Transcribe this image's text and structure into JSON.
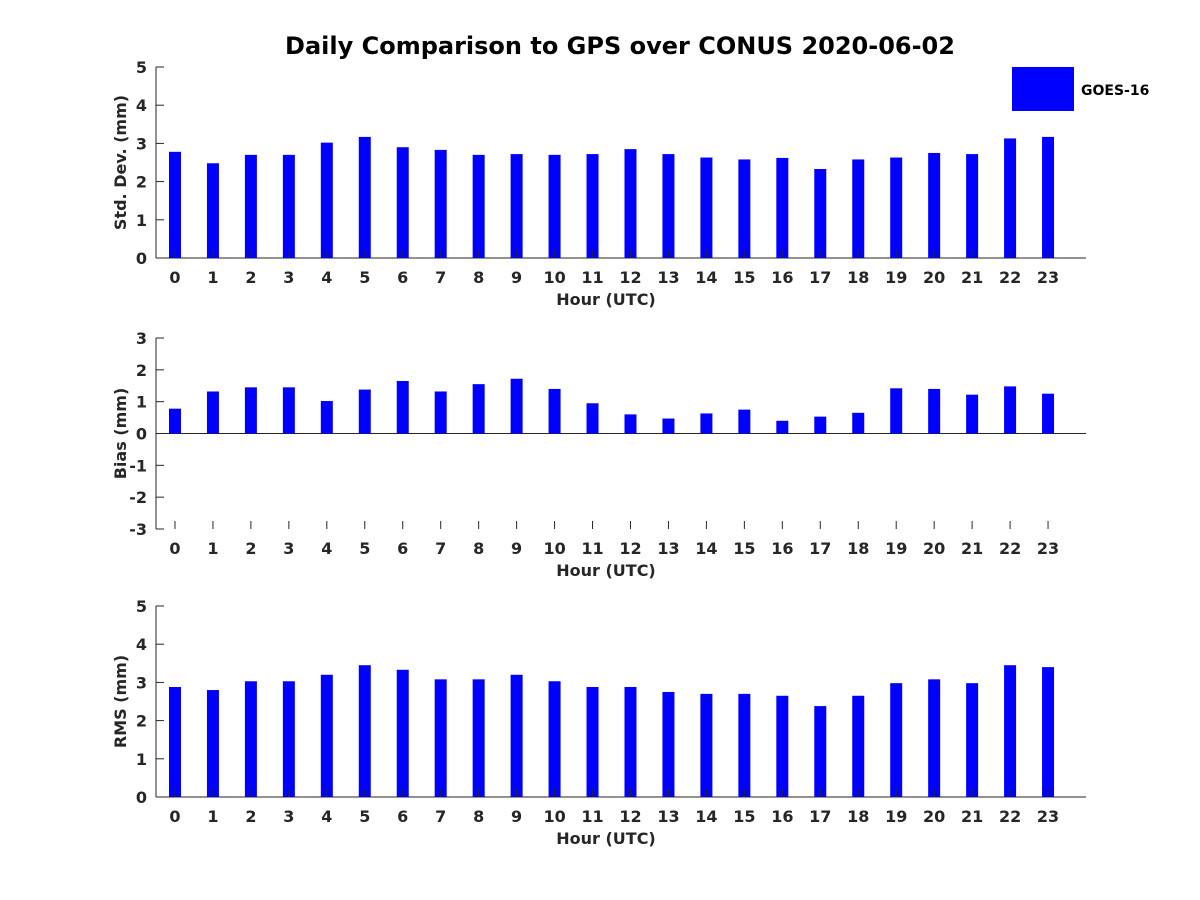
{
  "title": "Daily Comparison to GPS over CONUS 2020-06-02",
  "legend": {
    "label": "GOES-16",
    "color": "#0000ff"
  },
  "colors": {
    "bar": "#0000ff",
    "axis": "#262626"
  },
  "chart_data": [
    {
      "type": "bar",
      "name": "std-dev",
      "categories": [
        "0",
        "1",
        "2",
        "3",
        "4",
        "5",
        "6",
        "7",
        "8",
        "9",
        "10",
        "11",
        "12",
        "13",
        "14",
        "15",
        "16",
        "17",
        "18",
        "19",
        "20",
        "21",
        "22",
        "23"
      ],
      "series": [
        {
          "name": "GOES-16",
          "values": [
            2.78,
            2.48,
            2.7,
            2.7,
            3.02,
            3.17,
            2.9,
            2.83,
            2.7,
            2.72,
            2.7,
            2.72,
            2.85,
            2.72,
            2.63,
            2.58,
            2.62,
            2.33,
            2.58,
            2.63,
            2.75,
            2.72,
            3.13,
            3.17
          ]
        }
      ],
      "title": "",
      "xlabel": "Hour (UTC)",
      "ylabel": "Std. Dev. (mm)",
      "ylim": [
        0,
        5
      ],
      "yticks": [
        "0",
        "1",
        "2",
        "3",
        "4",
        "5"
      ]
    },
    {
      "type": "bar",
      "name": "bias",
      "categories": [
        "0",
        "1",
        "2",
        "3",
        "4",
        "5",
        "6",
        "7",
        "8",
        "9",
        "10",
        "11",
        "12",
        "13",
        "14",
        "15",
        "16",
        "17",
        "18",
        "19",
        "20",
        "21",
        "22",
        "23"
      ],
      "series": [
        {
          "name": "GOES-16",
          "values": [
            0.78,
            1.32,
            1.45,
            1.45,
            1.02,
            1.38,
            1.65,
            1.32,
            1.55,
            1.72,
            1.4,
            0.95,
            0.6,
            0.47,
            0.63,
            0.75,
            0.4,
            0.53,
            0.65,
            1.42,
            1.4,
            1.22,
            1.48,
            1.25
          ]
        }
      ],
      "title": "",
      "xlabel": "Hour (UTC)",
      "ylabel": "Bias (mm)",
      "ylim": [
        -3,
        3
      ],
      "yticks": [
        "-3",
        "-2",
        "-1",
        "0",
        "1",
        "2",
        "3"
      ]
    },
    {
      "type": "bar",
      "name": "rms",
      "categories": [
        "0",
        "1",
        "2",
        "3",
        "4",
        "5",
        "6",
        "7",
        "8",
        "9",
        "10",
        "11",
        "12",
        "13",
        "14",
        "15",
        "16",
        "17",
        "18",
        "19",
        "20",
        "21",
        "22",
        "23"
      ],
      "series": [
        {
          "name": "GOES-16",
          "values": [
            2.88,
            2.8,
            3.03,
            3.03,
            3.2,
            3.45,
            3.33,
            3.08,
            3.08,
            3.2,
            3.03,
            2.88,
            2.88,
            2.75,
            2.7,
            2.7,
            2.65,
            2.38,
            2.65,
            2.98,
            3.08,
            2.98,
            3.45,
            3.4
          ]
        }
      ],
      "title": "",
      "xlabel": "Hour (UTC)",
      "ylabel": "RMS (mm)",
      "ylim": [
        0,
        5
      ],
      "yticks": [
        "0",
        "1",
        "2",
        "3",
        "4",
        "5"
      ]
    }
  ]
}
